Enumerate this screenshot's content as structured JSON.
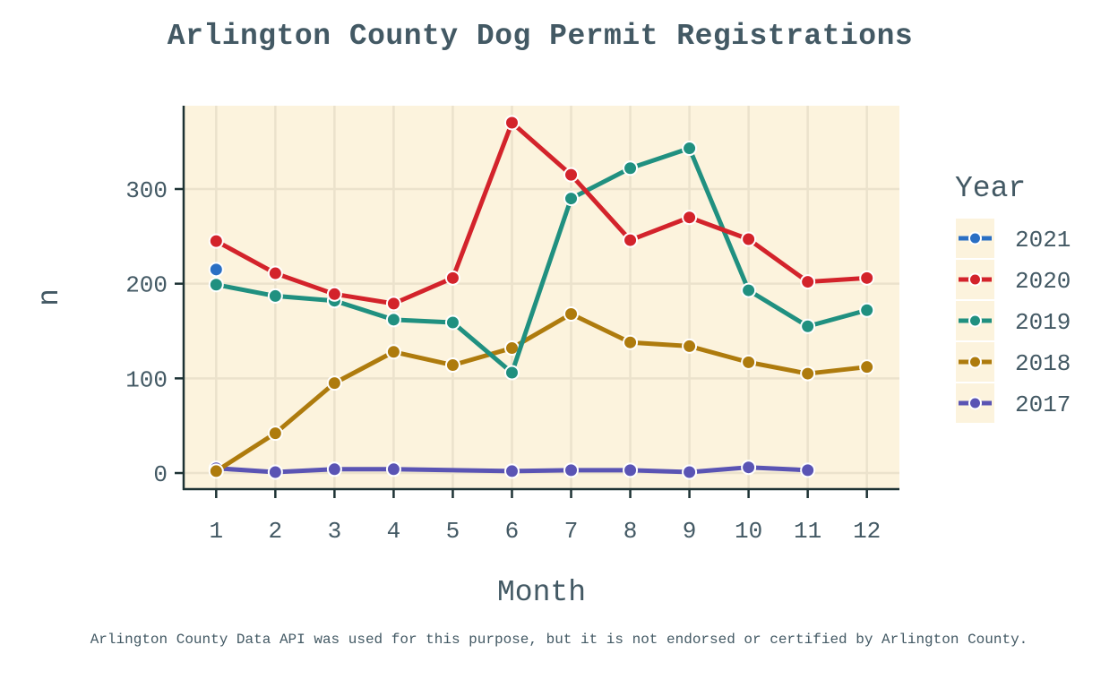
{
  "chart_data": {
    "type": "line",
    "title": "Arlington County Dog Permit Registrations",
    "xlabel": "Month",
    "ylabel": "n",
    "caption": "Arlington County Data API was used for this purpose, but it is not endorsed or certified by Arlington County.",
    "x": [
      1,
      2,
      3,
      4,
      5,
      6,
      7,
      8,
      9,
      10,
      11,
      12
    ],
    "xlim": [
      0.45,
      12.55
    ],
    "ylim": [
      -17,
      388
    ],
    "yticks": [
      0,
      100,
      200,
      300
    ],
    "grid": true,
    "legend_title": "Year",
    "legend_position": "right",
    "series": [
      {
        "name": "2021",
        "color": "#2a6fc4",
        "x": [
          1
        ],
        "values": [
          215
        ]
      },
      {
        "name": "2020",
        "color": "#d3232b",
        "x": [
          1,
          2,
          3,
          4,
          5,
          6,
          7,
          8,
          9,
          10,
          11,
          12
        ],
        "values": [
          245,
          211,
          189,
          179,
          206,
          370,
          315,
          246,
          270,
          247,
          202,
          206
        ]
      },
      {
        "name": "2019",
        "color": "#209080",
        "x": [
          1,
          2,
          3,
          4,
          5,
          6,
          7,
          8,
          9,
          10,
          11,
          12
        ],
        "values": [
          199,
          187,
          182,
          162,
          159,
          106,
          290,
          322,
          343,
          193,
          155,
          172
        ]
      },
      {
        "name": "2018",
        "color": "#ae7b0d",
        "x": [
          1,
          2,
          3,
          4,
          5,
          6,
          7,
          8,
          9,
          10,
          11,
          12
        ],
        "values": [
          2,
          42,
          95,
          128,
          114,
          132,
          168,
          138,
          134,
          117,
          105,
          112
        ]
      },
      {
        "name": "2017",
        "color": "#5a54b4",
        "x": [
          1,
          2,
          3,
          4,
          6,
          7,
          8,
          9,
          10,
          11
        ],
        "values": [
          5,
          1,
          4,
          4,
          2,
          3,
          3,
          1,
          6,
          3
        ]
      }
    ]
  },
  "colors": {
    "panel_background": "#fcf3dd",
    "grid": "#ebe2cc",
    "axis": "#1d3234",
    "text": "#435964"
  }
}
